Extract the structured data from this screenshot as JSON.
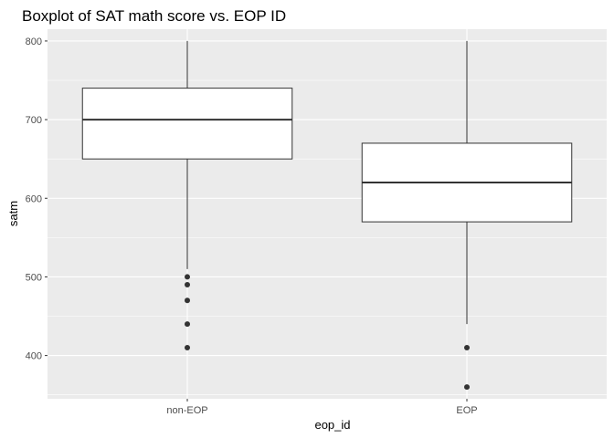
{
  "chart_data": {
    "type": "boxplot",
    "title": "Boxplot of SAT math score vs. EOP ID",
    "xlabel": "eop_id",
    "ylabel": "satm",
    "categories": [
      "non-EOP",
      "EOP"
    ],
    "ylim": [
      345,
      815
    ],
    "yticks": [
      400,
      500,
      600,
      700,
      800
    ],
    "grid": true,
    "background": "#ebebeb",
    "grid_color": "#ffffff",
    "box_fill": "#ffffff",
    "box_stroke": "#333333",
    "outlier_color": "#333333",
    "boxes": [
      {
        "category": "non-EOP",
        "whisker_low": 510,
        "q1": 650,
        "median": 700,
        "q3": 740,
        "whisker_high": 800,
        "outliers": [
          500,
          490,
          470,
          440,
          410
        ]
      },
      {
        "category": "EOP",
        "whisker_low": 440,
        "q1": 570,
        "median": 620,
        "q3": 670,
        "whisker_high": 800,
        "outliers": [
          410,
          360
        ]
      }
    ]
  }
}
